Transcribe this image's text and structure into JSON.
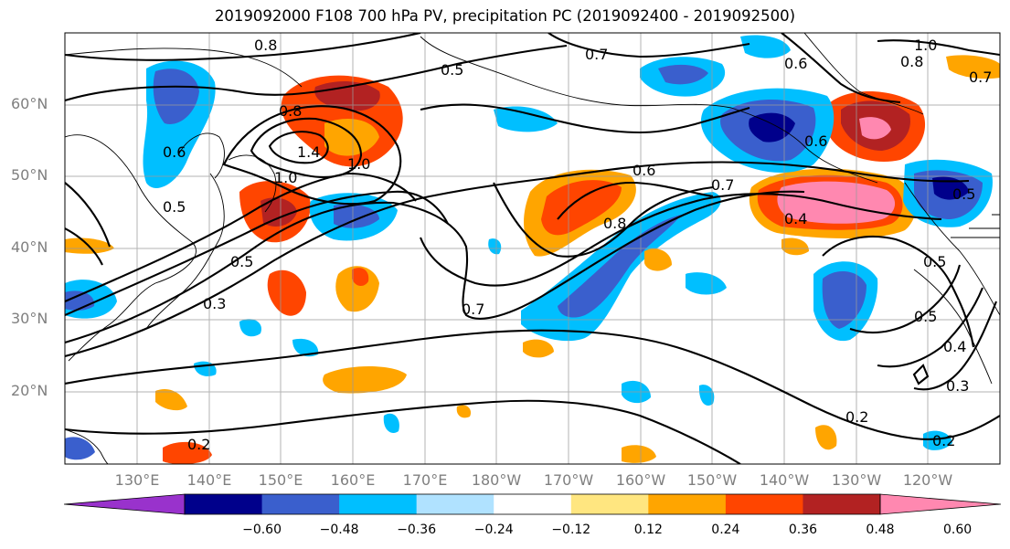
{
  "title": "2019092000 F108 700 hPa PV, precipitation PC (2019092400 - 2019092500)",
  "lat_labels": [
    "60°N",
    "50°N",
    "40°N",
    "30°N",
    "20°N"
  ],
  "lon_labels": [
    "130°E",
    "140°E",
    "150°E",
    "160°E",
    "170°E",
    "180°W",
    "170°W",
    "160°W",
    "150°W",
    "140°W",
    "130°W",
    "120°W"
  ],
  "colorbar": {
    "ticks": [
      "−0.60",
      "−0.48",
      "−0.36",
      "−0.24",
      "−0.12",
      "0.12",
      "0.24",
      "0.36",
      "0.48",
      "0.60"
    ],
    "colors": [
      "#9932cc",
      "#00008b",
      "#3a5fcd",
      "#00bfff",
      "#b0e2ff",
      "#ffffff",
      "#ffe680",
      "#ffa500",
      "#ff4500",
      "#b22222",
      "#ff88b0"
    ]
  },
  "contour_labels": [
    "0.8",
    "0.5",
    "0.7",
    "1.0",
    "0.6",
    "0.8",
    "0.7",
    "1.0",
    "0.5",
    "0.8",
    "0.6",
    "1.4",
    "1.0",
    "0.5",
    "0.6",
    "0.7",
    "0.8",
    "0.4",
    "0.5",
    "0.3",
    "0.7",
    "0.6",
    "0.5",
    "0.4",
    "0.3",
    "0.2",
    "0.2",
    "0.2",
    "0.5"
  ],
  "map": {
    "region": "North Pacific",
    "lat_range": [
      10,
      70
    ],
    "lon_range": [
      "120°E",
      "110°W"
    ],
    "fill_field": "precipitation PC",
    "contour_field": "700 hPa PV",
    "coastlines": true,
    "grid": true
  }
}
